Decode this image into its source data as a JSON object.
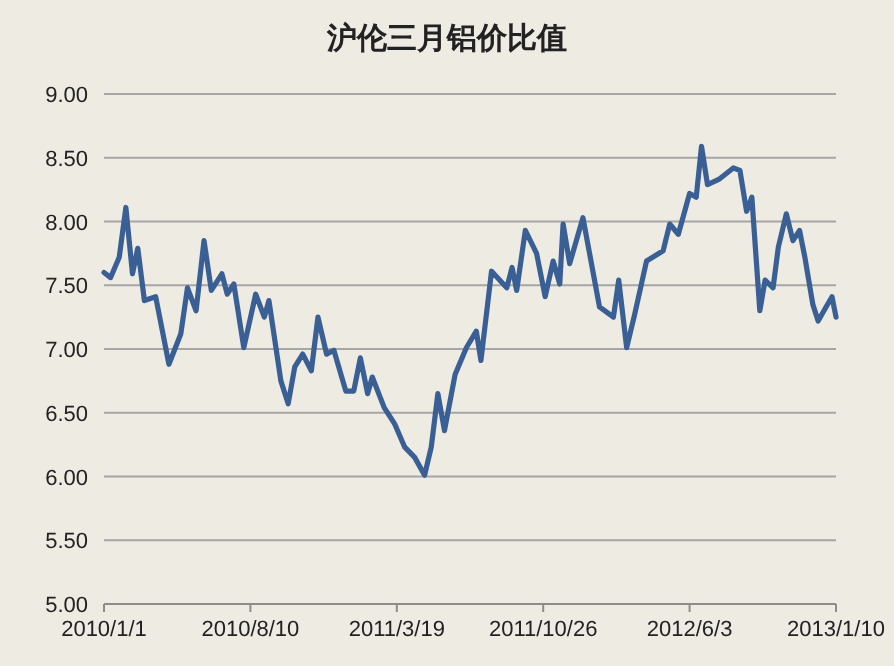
{
  "chart_data": {
    "type": "line",
    "title": "沪伦三月铝价比值",
    "x": [
      "2010-01-01",
      "2010-01-11",
      "2010-01-24",
      "2010-02-03",
      "2010-02-13",
      "2010-02-21",
      "2010-03-03",
      "2010-03-20",
      "2010-04-09",
      "2010-04-27",
      "2010-05-07",
      "2010-05-20",
      "2010-06-01",
      "2010-06-12",
      "2010-06-28",
      "2010-07-06",
      "2010-07-16",
      "2010-07-31",
      "2010-08-18",
      "2010-08-31",
      "2010-09-07",
      "2010-09-25",
      "2010-10-06",
      "2010-10-16",
      "2010-10-28",
      "2010-11-10",
      "2010-11-20",
      "2010-12-03",
      "2010-12-14",
      "2011-01-01",
      "2011-01-13",
      "2011-01-23",
      "2011-02-03",
      "2011-02-10",
      "2011-02-28",
      "2011-03-16",
      "2011-03-31",
      "2011-04-15",
      "2011-04-30",
      "2011-05-10",
      "2011-05-20",
      "2011-05-30",
      "2011-06-15",
      "2011-07-02",
      "2011-07-17",
      "2011-07-24",
      "2011-08-09",
      "2011-09-01",
      "2011-09-09",
      "2011-09-16",
      "2011-09-29",
      "2011-10-16",
      "2011-10-29",
      "2011-11-10",
      "2011-11-20",
      "2011-11-25",
      "2011-12-05",
      "2011-12-25",
      "2012-01-19",
      "2012-02-09",
      "2012-02-17",
      "2012-02-29",
      "2012-03-12",
      "2012-03-30",
      "2012-04-24",
      "2012-05-04",
      "2012-05-17",
      "2012-06-03",
      "2012-06-13",
      "2012-06-21",
      "2012-06-30",
      "2012-07-17",
      "2012-08-08",
      "2012-08-18",
      "2012-08-28",
      "2012-09-05",
      "2012-09-17",
      "2012-09-25",
      "2012-10-07",
      "2012-10-15",
      "2012-10-27",
      "2012-11-06",
      "2012-11-16",
      "2012-11-24",
      "2012-12-06",
      "2012-12-14",
      "2012-12-26",
      "2013-01-04",
      "2013-01-10"
    ],
    "series": [
      {
        "color": "#3a5f95",
        "values": [
          7.6,
          7.56,
          7.72,
          8.11,
          7.59,
          7.79,
          7.38,
          7.41,
          6.88,
          7.12,
          7.48,
          7.3,
          7.85,
          7.46,
          7.59,
          7.43,
          7.51,
          7.01,
          7.43,
          7.25,
          7.38,
          6.75,
          6.57,
          6.86,
          6.96,
          6.83,
          7.25,
          6.96,
          6.99,
          6.67,
          6.67,
          6.93,
          6.65,
          6.78,
          6.54,
          6.41,
          6.23,
          6.15,
          6.01,
          6.23,
          6.65,
          6.36,
          6.8,
          7.01,
          7.14,
          6.91,
          7.61,
          7.48,
          7.64,
          7.46,
          7.93,
          7.75,
          7.41,
          7.69,
          7.51,
          7.98,
          7.67,
          8.03,
          7.33,
          7.25,
          7.54,
          7.01,
          7.27,
          7.69,
          7.77,
          7.98,
          7.9,
          8.22,
          8.19,
          8.59,
          8.29,
          8.33,
          8.42,
          8.4,
          8.08,
          8.19,
          7.3,
          7.54,
          7.48,
          7.8,
          8.06,
          7.85,
          7.93,
          7.72,
          7.35,
          7.22,
          7.33,
          7.41,
          7.25
        ]
      }
    ],
    "xlim": [
      "2010-01-01",
      "2013-01-10"
    ],
    "xticks": [
      {
        "value": "2010-01-01",
        "label": "2010/1/1"
      },
      {
        "value": "2010-08-10",
        "label": "2010/8/10"
      },
      {
        "value": "2011-03-19",
        "label": "2011/3/19"
      },
      {
        "value": "2011-10-26",
        "label": "2011/10/26"
      },
      {
        "value": "2012-06-03",
        "label": "2012/6/3"
      },
      {
        "value": "2013-01-10",
        "label": "2013/1/10"
      }
    ],
    "ylim": [
      5,
      9
    ],
    "yticks": [
      {
        "value": 5,
        "label": "5.00"
      },
      {
        "value": 5.5,
        "label": "5.50"
      },
      {
        "value": 6,
        "label": "6.00"
      },
      {
        "value": 6.5,
        "label": "6.50"
      },
      {
        "value": 7,
        "label": "7.00"
      },
      {
        "value": 7.5,
        "label": "7.50"
      },
      {
        "value": 8,
        "label": "8.00"
      },
      {
        "value": 8.5,
        "label": "8.50"
      },
      {
        "value": 9,
        "label": "9.00"
      }
    ],
    "grid": "y"
  }
}
